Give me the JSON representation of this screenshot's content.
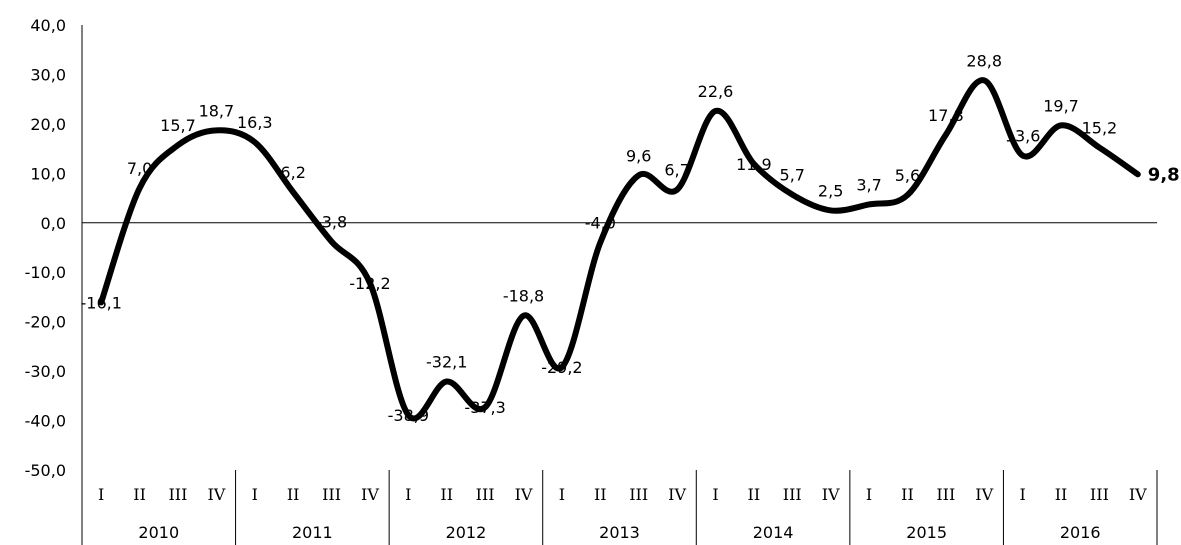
{
  "chart_data": {
    "type": "line",
    "title": "",
    "xlabel": "",
    "ylabel": "",
    "ylim": [
      -50,
      40
    ],
    "yticks": [
      40,
      30,
      20,
      10,
      0,
      -10,
      -20,
      -30,
      -40,
      -50
    ],
    "ytick_labels": [
      "40,0",
      "30,0",
      "20,0",
      "10,0",
      "0,0",
      "-10,0",
      "-20,0",
      "-30,0",
      "-40,0",
      "-50,0"
    ],
    "years": [
      "2010",
      "2011",
      "2012",
      "2013",
      "2014",
      "2015",
      "2016"
    ],
    "quarters": [
      "I",
      "II",
      "III",
      "IV"
    ],
    "categories": [
      "2010 I",
      "2010 II",
      "2010 III",
      "2010 IV",
      "2011 I",
      "2011 II",
      "2011 III",
      "2011 IV",
      "2012 I",
      "2012 II",
      "2012 III",
      "2012 IV",
      "2013 I",
      "2013 II",
      "2013 III",
      "2013 IV",
      "2014 I",
      "2014 II",
      "2014 III",
      "2014 IV",
      "2015 I",
      "2015 II",
      "2015 III",
      "2015 IV",
      "2016 I",
      "2016 II",
      "2016 III",
      "2016 IV"
    ],
    "series": [
      {
        "values": [
          -16.1,
          7.0,
          15.7,
          18.7,
          16.3,
          6.2,
          -3.8,
          -12.2,
          -38.9,
          -32.1,
          -37.3,
          -18.8,
          -29.2,
          -4.0,
          9.6,
          6.7,
          22.6,
          11.9,
          5.7,
          2.5,
          3.7,
          5.6,
          17.8,
          28.8,
          13.6,
          19.7,
          15.2,
          9.8
        ],
        "labels": [
          "-16,1",
          "7,0",
          "15,7",
          "18,7",
          "16,3",
          "6,2",
          "-3,8",
          "-12,2",
          "-38,9",
          "-32,1",
          "-37,3",
          "-18,8",
          "-29,2",
          "-4,0",
          "9,6",
          "6,7",
          "22,6",
          "11,9",
          "5,7",
          "2,5",
          "3,7",
          "5,6",
          "17,8",
          "28,8",
          "13,6",
          "19,7",
          "15,2",
          "9,8"
        ],
        "color": "#000000"
      }
    ],
    "grid": false,
    "legend": "none"
  }
}
